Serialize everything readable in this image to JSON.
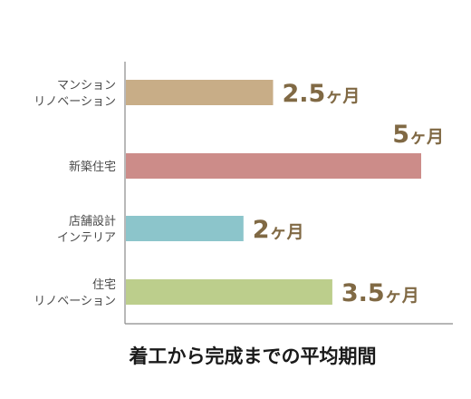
{
  "chart_data": {
    "type": "bar",
    "orientation": "horizontal",
    "categories": [
      [
        "マンション",
        "リノベーション"
      ],
      [
        "新築住宅"
      ],
      [
        "店舗設計",
        "インテリア"
      ],
      [
        "住宅",
        "リノベーション"
      ]
    ],
    "values": [
      2.5,
      5,
      2,
      3.5
    ],
    "value_labels": [
      "2.5",
      "5",
      "2",
      "3.5"
    ],
    "unit": "ヶ月",
    "colors": [
      "#c8ad87",
      "#cc8c89",
      "#8cc5cb",
      "#bcce8c"
    ],
    "title": "着工から完成までの平均期間",
    "xlabel": "",
    "ylabel": "",
    "xlim": [
      0,
      5
    ],
    "grid": false,
    "legend": "none"
  }
}
